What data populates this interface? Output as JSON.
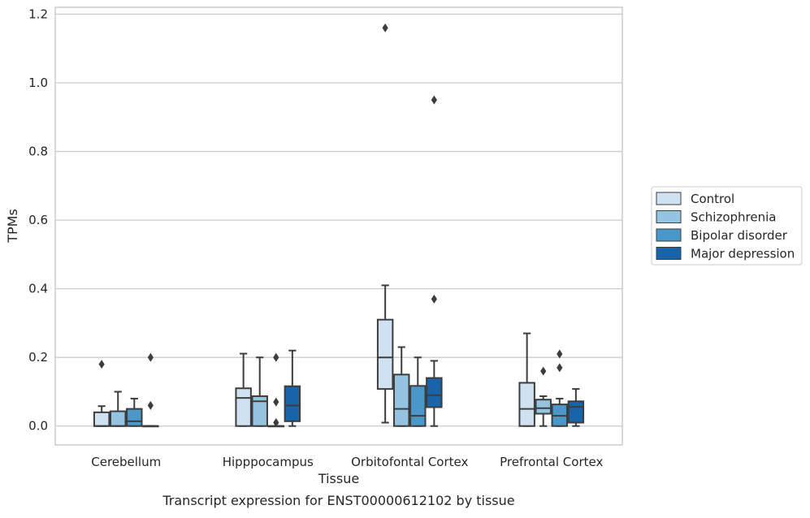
{
  "chart_data": {
    "type": "box",
    "xlabel": "Tissue",
    "ylabel": "TPMs",
    "caption": "Transcript expression for ENST00000612102 by tissue",
    "ylim": [
      -0.055,
      1.22
    ],
    "yticks": [
      "0.0",
      "0.2",
      "0.4",
      "0.6",
      "0.8",
      "1.0",
      "1.2"
    ],
    "ytick_values": [
      0.0,
      0.2,
      0.4,
      0.6,
      0.8,
      1.0,
      1.2
    ],
    "grid": "horizontal",
    "legend_position": "right",
    "categories": [
      "Cerebellum",
      "Hipppocampus",
      "Orbitofontal Cortex",
      "Prefrontal Cortex"
    ],
    "series": [
      {
        "name": "Control",
        "color": "#d0e1f2",
        "boxes": [
          {
            "q1": 0.0,
            "median": 0.0,
            "q3": 0.04,
            "whisker_low": 0.0,
            "whisker_high": 0.058,
            "outliers": [
              0.18
            ]
          },
          {
            "q1": 0.0,
            "median": 0.082,
            "q3": 0.11,
            "whisker_low": 0.0,
            "whisker_high": 0.211,
            "outliers": []
          },
          {
            "q1": 0.108,
            "median": 0.2,
            "q3": 0.31,
            "whisker_low": 0.01,
            "whisker_high": 0.41,
            "outliers": [
              1.16
            ]
          },
          {
            "q1": 0.0,
            "median": 0.05,
            "q3": 0.126,
            "whisker_low": 0.0,
            "whisker_high": 0.27,
            "outliers": []
          }
        ]
      },
      {
        "name": "Schizophrenia",
        "color": "#94c4df",
        "boxes": [
          {
            "q1": 0.0,
            "median": 0.0,
            "q3": 0.043,
            "whisker_low": 0.0,
            "whisker_high": 0.1,
            "outliers": []
          },
          {
            "q1": 0.0,
            "median": 0.072,
            "q3": 0.087,
            "whisker_low": 0.0,
            "whisker_high": 0.2,
            "outliers": []
          },
          {
            "q1": 0.0,
            "median": 0.05,
            "q3": 0.15,
            "whisker_low": 0.0,
            "whisker_high": 0.23,
            "outliers": []
          },
          {
            "q1": 0.036,
            "median": 0.052,
            "q3": 0.077,
            "whisker_low": 0.0,
            "whisker_high": 0.087,
            "outliers": [
              0.16
            ]
          }
        ]
      },
      {
        "name": "Bipolar disorder",
        "color": "#4a98c9",
        "boxes": [
          {
            "q1": 0.0,
            "median": 0.014,
            "q3": 0.05,
            "whisker_low": 0.0,
            "whisker_high": 0.08,
            "outliers": []
          },
          {
            "q1": 0.0,
            "median": 0.0,
            "q3": 0.0,
            "whisker_low": 0.0,
            "whisker_high": 0.0,
            "outliers": [
              0.01,
              0.07,
              0.2
            ]
          },
          {
            "q1": 0.0,
            "median": 0.03,
            "q3": 0.117,
            "whisker_low": 0.0,
            "whisker_high": 0.2,
            "outliers": []
          },
          {
            "q1": 0.0,
            "median": 0.03,
            "q3": 0.063,
            "whisker_low": 0.0,
            "whisker_high": 0.08,
            "outliers": [
              0.17,
              0.21
            ]
          }
        ]
      },
      {
        "name": "Major depression",
        "color": "#1764ab",
        "boxes": [
          {
            "q1": 0.0,
            "median": 0.0,
            "q3": 0.0,
            "whisker_low": 0.0,
            "whisker_high": 0.0,
            "outliers": [
              0.06,
              0.2
            ]
          },
          {
            "q1": 0.014,
            "median": 0.06,
            "q3": 0.116,
            "whisker_low": 0.0,
            "whisker_high": 0.22,
            "outliers": []
          },
          {
            "q1": 0.055,
            "median": 0.09,
            "q3": 0.14,
            "whisker_low": 0.0,
            "whisker_high": 0.19,
            "outliers": [
              0.37,
              0.95
            ]
          },
          {
            "q1": 0.01,
            "median": 0.056,
            "q3": 0.072,
            "whisker_low": 0.0,
            "whisker_high": 0.108,
            "outliers": []
          }
        ]
      }
    ]
  }
}
